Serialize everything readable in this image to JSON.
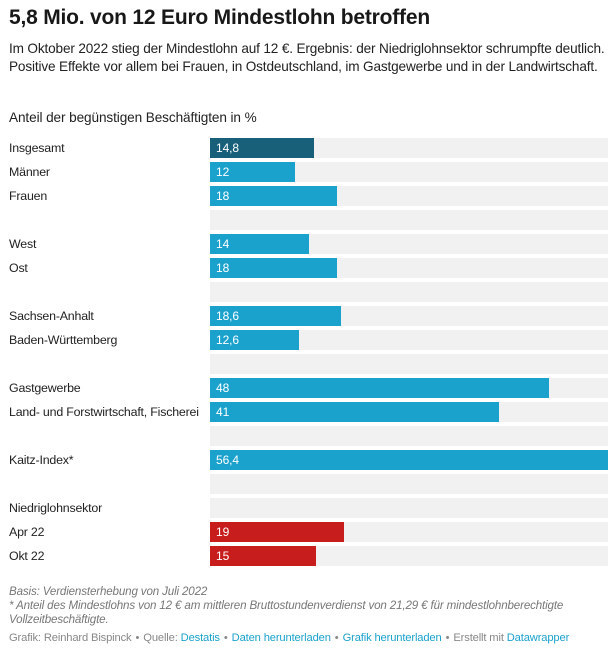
{
  "header": {
    "title": "5,8 Mio. von 12 Euro Mindestlohn betroffen",
    "description": "Im Oktober 2022 stieg der Mindestlohn auf 12 €. Ergebnis: der Niedriglohnsektor schrumpfte deutlich. Positive Effekte vor allem bei Frauen, in Ostdeutschland, im Gastgewerbe und in der Landwirtschaft.",
    "subtitle": "Anteil der begünstigen Beschäftigten in %"
  },
  "chart_data": {
    "type": "bar",
    "orientation": "horizontal",
    "title": "5,8 Mio. von 12 Euro Mindestlohn betroffen",
    "xlabel": "",
    "ylabel": "Anteil der begünstigen Beschäftigten in %",
    "xlim": [
      0,
      56.4
    ],
    "colors": {
      "highlight": "#18607a",
      "default": "#1ba2cc",
      "red": "#c71e1d",
      "track": "#f1f1f1"
    },
    "rows": [
      {
        "label": "Insgesamt",
        "value": 14.8,
        "display": "14,8",
        "color": "highlight"
      },
      {
        "label": "Männer",
        "value": 12,
        "display": "12",
        "color": "default"
      },
      {
        "label": "Frauen",
        "value": 18,
        "display": "18",
        "color": "default"
      },
      {
        "label": "",
        "value": null,
        "display": "",
        "color": "default"
      },
      {
        "label": "West",
        "value": 14,
        "display": "14",
        "color": "default"
      },
      {
        "label": "Ost",
        "value": 18,
        "display": "18",
        "color": "default"
      },
      {
        "label": "",
        "value": null,
        "display": "",
        "color": "default"
      },
      {
        "label": "Sachsen-Anhalt",
        "value": 18.6,
        "display": "18,6",
        "color": "default"
      },
      {
        "label": "Baden-Württemberg",
        "value": 12.6,
        "display": "12,6",
        "color": "default"
      },
      {
        "label": "",
        "value": null,
        "display": "",
        "color": "default"
      },
      {
        "label": "Gastgewerbe",
        "value": 48,
        "display": "48",
        "color": "default"
      },
      {
        "label": "Land- und Forstwirtschaft, Fischerei",
        "value": 41,
        "display": "41",
        "color": "default"
      },
      {
        "label": "",
        "value": null,
        "display": "",
        "color": "default"
      },
      {
        "label": "Kaitz-Index*",
        "value": 56.4,
        "display": "56,4",
        "color": "default"
      },
      {
        "label": "",
        "value": null,
        "display": "",
        "color": "default"
      },
      {
        "label": "Niedriglohnsektor",
        "value": null,
        "display": "",
        "color": "default"
      },
      {
        "label": "Apr 22",
        "value": 19,
        "display": "19",
        "color": "red"
      },
      {
        "label": "Okt 22",
        "value": 15,
        "display": "15",
        "color": "red"
      }
    ]
  },
  "footer": {
    "note1": "Basis: Verdiensterhebung von Juli 2022",
    "note2": "* Anteil des Mindestlohns von 12 € am mittleren Bruttostundenverdienst von 21,29 € für mindestlohnberechtigte Vollzeitbeschäftigte.",
    "credit": "Grafik: Reinhard Bispinck",
    "source_label": "Quelle:",
    "source_link": "Destatis",
    "download_data": "Daten herunterladen",
    "download_chart": "Grafik herunterladen",
    "made_with": "Erstellt mit",
    "made_with_link": "Datawrapper",
    "separator": "•"
  }
}
